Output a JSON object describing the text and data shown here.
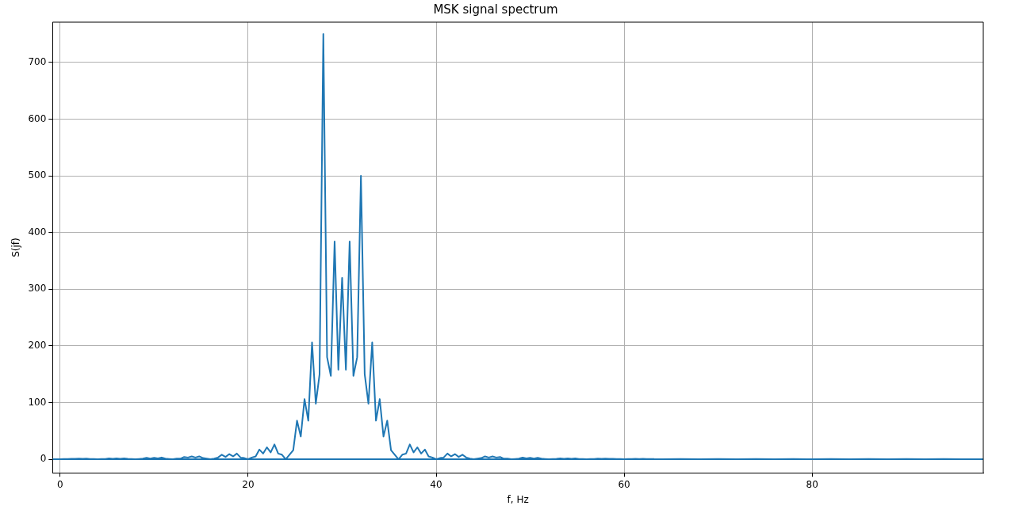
{
  "chart_data": {
    "type": "line",
    "title": "MSK signal spectrum",
    "xlabel": "f, Hz",
    "ylabel": "S(jf)",
    "xlim": [
      -0.8,
      98.2
    ],
    "ylim": [
      -24,
      771
    ],
    "xticks": [
      0,
      20,
      40,
      60,
      80
    ],
    "yticks": [
      0,
      100,
      200,
      300,
      400,
      500,
      600,
      700
    ],
    "grid": true,
    "legend": false,
    "marker": "none",
    "line_style": "solid",
    "series": [
      {
        "color": "#1f77b4",
        "x": [
          0,
          0.4,
          0.8,
          1.2,
          1.6,
          2,
          2.4,
          2.8,
          3.2,
          3.6,
          4,
          4.4,
          4.8,
          5.2,
          5.6,
          6,
          6.4,
          6.8,
          7.2,
          7.6,
          8,
          8.4,
          8.8,
          9.2,
          9.6,
          10,
          10.4,
          10.8,
          11.2,
          11.6,
          12,
          12.4,
          12.8,
          13.2,
          13.6,
          14,
          14.4,
          14.8,
          15.2,
          15.6,
          16,
          16.4,
          16.8,
          17.2,
          17.6,
          18,
          18.4,
          18.8,
          19.2,
          19.6,
          20,
          20.4,
          20.8,
          21.2,
          21.6,
          22,
          22.4,
          22.8,
          23.2,
          23.6,
          24,
          24.4,
          24.8,
          25.2,
          25.6,
          26,
          26.4,
          26.8,
          27.2,
          27.6,
          28,
          28.4,
          28.8,
          29.2,
          29.6,
          30,
          30.4,
          30.8,
          31.2,
          31.6,
          32,
          32.4,
          32.8,
          33.2,
          33.6,
          34,
          34.4,
          34.8,
          35.2,
          35.6,
          36,
          36.4,
          36.8,
          37.2,
          37.6,
          38,
          38.4,
          38.8,
          39.2,
          39.6,
          40,
          40.4,
          40.8,
          41.2,
          41.6,
          42,
          42.4,
          42.8,
          43.2,
          43.6,
          44,
          44.4,
          44.8,
          45.2,
          45.6,
          46,
          46.4,
          46.8,
          47.2,
          47.6,
          48,
          48.4,
          48.8,
          49.2,
          49.6,
          50,
          50.4,
          50.8,
          51.2,
          51.6,
          52,
          52.4,
          52.8,
          53.2,
          53.6,
          54,
          54.4,
          54.8,
          55.2,
          55.6,
          56,
          56.4,
          56.8,
          57.2,
          57.6,
          58,
          58.4,
          58.8,
          59.2,
          59.6,
          60,
          60.4,
          60.8,
          61.2,
          61.6,
          62,
          62.4,
          62.8,
          63.2,
          63.6,
          64,
          66,
          68,
          70,
          72,
          74,
          76,
          78,
          80,
          82,
          84,
          86,
          88,
          90,
          92,
          94,
          96,
          98
        ],
        "values": [
          0,
          0.2,
          0.3,
          0.8,
          0.6,
          1,
          0.6,
          1,
          0.5,
          0.3,
          0,
          0.3,
          0.5,
          1.5,
          0.8,
          1.5,
          0.8,
          1.6,
          0.6,
          0.3,
          0,
          0.5,
          1,
          2.5,
          1.2,
          2.5,
          1.6,
          3,
          1,
          0.5,
          0,
          1,
          1,
          4,
          3,
          5,
          3,
          5,
          2,
          1,
          0,
          1,
          3,
          8,
          4,
          9,
          5,
          10,
          3,
          2,
          0,
          3,
          5,
          17,
          10,
          21,
          12,
          26,
          10,
          8,
          0,
          8,
          16,
          68,
          40,
          106,
          68,
          206,
          98,
          150,
          750,
          180,
          147,
          384,
          158,
          320,
          158,
          384,
          147,
          180,
          500,
          150,
          98,
          206,
          68,
          106,
          40,
          68,
          16,
          8,
          0,
          8,
          10,
          26,
          12,
          21,
          10,
          17,
          5,
          3,
          0,
          2,
          3,
          10,
          5,
          9,
          4,
          8,
          3,
          1,
          0,
          1,
          2,
          5,
          3,
          5,
          3,
          4,
          1,
          1,
          0,
          0.5,
          1,
          3,
          1.6,
          2.5,
          1.2,
          2.5,
          1,
          0.5,
          0,
          0.3,
          0.6,
          1.6,
          0.8,
          1.5,
          0.8,
          1.5,
          0.5,
          0.3,
          0,
          0.3,
          0.5,
          1,
          0.6,
          1,
          0.6,
          0.8,
          0.3,
          0.2,
          0,
          0.2,
          0.3,
          0.6,
          0.4,
          0.6,
          0.4,
          0.5,
          0.2,
          0.1,
          0,
          0.4,
          0,
          0.3,
          0,
          0.3,
          0,
          0.3,
          0,
          0.2,
          0,
          0.2,
          0,
          0.2,
          0,
          0.2,
          0,
          0
        ]
      },
      {
        "color": "#1f77b4",
        "x": [
          -0.8,
          98.2
        ],
        "values": [
          0,
          0
        ]
      }
    ]
  }
}
